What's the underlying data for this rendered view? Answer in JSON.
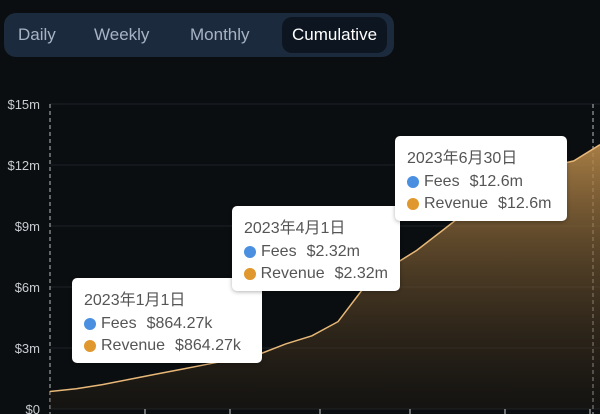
{
  "tabs": [
    {
      "label": "Daily"
    },
    {
      "label": "Weekly"
    },
    {
      "label": "Monthly"
    },
    {
      "label": "Cumulative",
      "active": true
    }
  ],
  "colors": {
    "fees": "#4a8fe0",
    "revenue": "#e0982e",
    "line": "#e8b878"
  },
  "tooltips": [
    {
      "date": "2023年1月1日",
      "fees_label": "Fees",
      "fees": "$864.27k",
      "revenue_label": "Revenue",
      "revenue": "$864.27k"
    },
    {
      "date": "2023年4月1日",
      "fees_label": "Fees",
      "fees": "$2.32m",
      "revenue_label": "Revenue",
      "revenue": "$2.32m"
    },
    {
      "date": "2023年6月30日",
      "fees_label": "Fees",
      "fees": "$12.6m",
      "revenue_label": "Revenue",
      "revenue": "$12.6m"
    }
  ],
  "chart_data": {
    "type": "area",
    "ylim": [
      0,
      15
    ],
    "ytick_labels": [
      "$0",
      "$3m",
      "$6m",
      "$9m",
      "$12m",
      "$15m"
    ],
    "grid": true,
    "series": [
      {
        "values": [
          0.86,
          1.0,
          1.2,
          1.45,
          1.7,
          1.95,
          2.2,
          2.45,
          2.7,
          3.2,
          3.6,
          4.3,
          6.0,
          7.0,
          7.8,
          8.8,
          9.8,
          10.6,
          11.2,
          11.9,
          12.2,
          13.0
        ]
      }
    ]
  }
}
